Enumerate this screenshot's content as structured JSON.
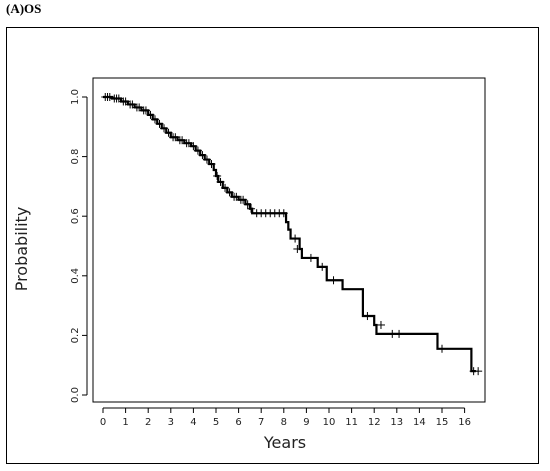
{
  "figure": {
    "panel_label": "(A)OS"
  },
  "chart_data": {
    "type": "line",
    "subtype": "kaplan-meier-step",
    "title": "",
    "xlabel": "Years",
    "ylabel": "Probability",
    "xlim": [
      0,
      16.5
    ],
    "ylim": [
      0,
      1.0
    ],
    "xticks": [
      "0",
      "1",
      "2",
      "3",
      "4",
      "5",
      "6",
      "7",
      "8",
      "9",
      "10",
      "11",
      "12",
      "13",
      "14",
      "15",
      "16"
    ],
    "yticks": [
      "0.0",
      "0.2",
      "0.4",
      "0.6",
      "0.8",
      "1.0"
    ],
    "line_color": "#000000",
    "grid": false,
    "series": [
      {
        "steps": [
          [
            0,
            1.0
          ],
          [
            0.4,
            0.995
          ],
          [
            0.8,
            0.985
          ],
          [
            1.1,
            0.975
          ],
          [
            1.4,
            0.965
          ],
          [
            1.7,
            0.955
          ],
          [
            2.0,
            0.94
          ],
          [
            2.2,
            0.925
          ],
          [
            2.4,
            0.91
          ],
          [
            2.6,
            0.895
          ],
          [
            2.8,
            0.88
          ],
          [
            3.0,
            0.865
          ],
          [
            3.3,
            0.855
          ],
          [
            3.6,
            0.845
          ],
          [
            3.9,
            0.835
          ],
          [
            4.1,
            0.82
          ],
          [
            4.3,
            0.805
          ],
          [
            4.5,
            0.79
          ],
          [
            4.7,
            0.775
          ],
          [
            4.9,
            0.755
          ],
          [
            5.0,
            0.735
          ],
          [
            5.1,
            0.715
          ],
          [
            5.3,
            0.695
          ],
          [
            5.5,
            0.68
          ],
          [
            5.7,
            0.665
          ],
          [
            6.0,
            0.655
          ],
          [
            6.3,
            0.64
          ],
          [
            6.5,
            0.625
          ],
          [
            6.6,
            0.61
          ],
          [
            8.1,
            0.58
          ],
          [
            8.2,
            0.555
          ],
          [
            8.3,
            0.525
          ],
          [
            8.7,
            0.49
          ],
          [
            8.8,
            0.46
          ],
          [
            9.5,
            0.43
          ],
          [
            9.9,
            0.385
          ],
          [
            10.6,
            0.355
          ],
          [
            11.5,
            0.265
          ],
          [
            12.0,
            0.235
          ],
          [
            12.1,
            0.205
          ],
          [
            14.8,
            0.155
          ],
          [
            16.3,
            0.08
          ],
          [
            16.5,
            0.08
          ]
        ],
        "censor": [
          [
            0.1,
            1.0
          ],
          [
            0.2,
            1.0
          ],
          [
            0.3,
            1.0
          ],
          [
            0.5,
            0.995
          ],
          [
            0.6,
            0.995
          ],
          [
            0.7,
            0.995
          ],
          [
            0.9,
            0.985
          ],
          [
            1.0,
            0.985
          ],
          [
            1.2,
            0.975
          ],
          [
            1.3,
            0.975
          ],
          [
            1.5,
            0.965
          ],
          [
            1.6,
            0.965
          ],
          [
            1.8,
            0.955
          ],
          [
            1.9,
            0.955
          ],
          [
            2.1,
            0.94
          ],
          [
            2.3,
            0.925
          ],
          [
            2.5,
            0.91
          ],
          [
            2.7,
            0.895
          ],
          [
            2.9,
            0.88
          ],
          [
            3.1,
            0.865
          ],
          [
            3.2,
            0.865
          ],
          [
            3.4,
            0.855
          ],
          [
            3.5,
            0.855
          ],
          [
            3.7,
            0.845
          ],
          [
            3.8,
            0.845
          ],
          [
            4.0,
            0.835
          ],
          [
            4.2,
            0.82
          ],
          [
            4.4,
            0.805
          ],
          [
            4.6,
            0.79
          ],
          [
            4.8,
            0.775
          ],
          [
            5.05,
            0.735
          ],
          [
            5.2,
            0.715
          ],
          [
            5.4,
            0.695
          ],
          [
            5.6,
            0.68
          ],
          [
            5.8,
            0.665
          ],
          [
            5.9,
            0.665
          ],
          [
            6.1,
            0.655
          ],
          [
            6.2,
            0.655
          ],
          [
            6.4,
            0.64
          ],
          [
            6.55,
            0.625
          ],
          [
            6.8,
            0.61
          ],
          [
            7.0,
            0.61
          ],
          [
            7.2,
            0.61
          ],
          [
            7.4,
            0.61
          ],
          [
            7.6,
            0.61
          ],
          [
            7.8,
            0.61
          ],
          [
            8.0,
            0.61
          ],
          [
            8.5,
            0.525
          ],
          [
            8.6,
            0.49
          ],
          [
            9.2,
            0.46
          ],
          [
            9.7,
            0.43
          ],
          [
            10.2,
            0.385
          ],
          [
            11.7,
            0.265
          ],
          [
            12.3,
            0.235
          ],
          [
            12.8,
            0.205
          ],
          [
            13.1,
            0.205
          ],
          [
            15.0,
            0.155
          ],
          [
            16.4,
            0.08
          ],
          [
            16.6,
            0.08
          ]
        ]
      }
    ]
  }
}
